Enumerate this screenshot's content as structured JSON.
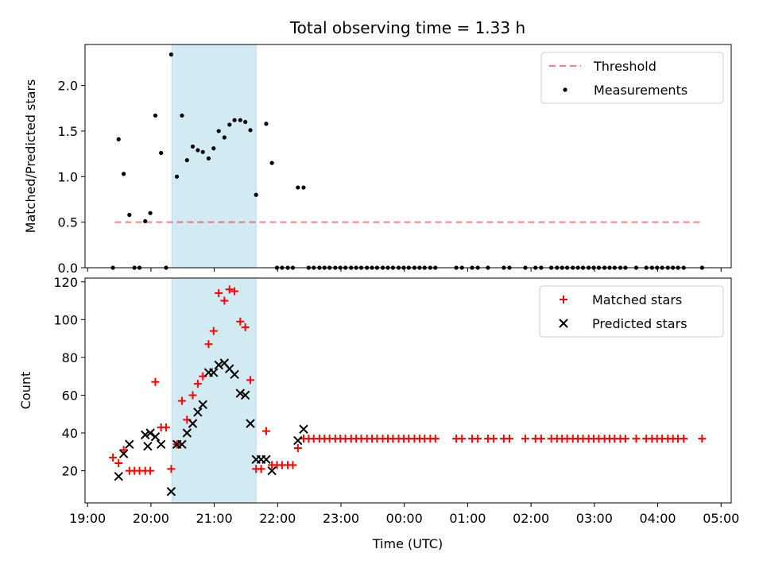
{
  "title": "Total observing time = 1.33 h",
  "xaxis": {
    "label": "Time (UTC)",
    "ticks": [
      {
        "t": 0,
        "label": "19:00"
      },
      {
        "t": 1,
        "label": "20:00"
      },
      {
        "t": 2,
        "label": "21:00"
      },
      {
        "t": 3,
        "label": "22:00"
      },
      {
        "t": 4,
        "label": "23:00"
      },
      {
        "t": 5,
        "label": "00:00"
      },
      {
        "t": 6,
        "label": "01:00"
      },
      {
        "t": 7,
        "label": "02:00"
      },
      {
        "t": 8,
        "label": "03:00"
      },
      {
        "t": 9,
        "label": "04:00"
      },
      {
        "t": 10,
        "label": "05:00"
      }
    ],
    "range": [
      -0.04,
      10.16
    ]
  },
  "shaded_span": {
    "start": 1.33,
    "end": 2.66,
    "color": "#add8e6"
  },
  "colors": {
    "threshold": "#ff0000",
    "measurements": "#000000",
    "matched": "#ff0000",
    "predicted": "#000000"
  },
  "chart_data": [
    {
      "type": "scatter",
      "ylabel": "Matched/Predicted stars",
      "ylim": [
        0,
        2.45
      ],
      "yticks": [
        0.0,
        0.5,
        1.0,
        1.5,
        2.0
      ],
      "ytick_labels": [
        "0.0",
        "0.5",
        "1.0",
        "1.5",
        "2.0"
      ],
      "legend": {
        "position": "top-right",
        "entries": [
          "Threshold",
          "Measurements"
        ]
      },
      "threshold": {
        "name": "Threshold",
        "value": 0.5,
        "x_range": [
          0.43,
          9.7
        ]
      },
      "series": [
        {
          "name": "Measurements",
          "points": [
            [
              0.4,
              0
            ],
            [
              0.49,
              1.41
            ],
            [
              0.57,
              1.03
            ],
            [
              0.66,
              0.58
            ],
            [
              0.74,
              0
            ],
            [
              0.82,
              0
            ],
            [
              0.91,
              0.51
            ],
            [
              0.99,
              0.6
            ],
            [
              1.07,
              1.67
            ],
            [
              1.16,
              1.26
            ],
            [
              1.24,
              0
            ],
            [
              1.32,
              2.34
            ],
            [
              1.41,
              1.0
            ],
            [
              1.49,
              1.67
            ],
            [
              1.57,
              1.18
            ],
            [
              1.66,
              1.33
            ],
            [
              1.74,
              1.29
            ],
            [
              1.82,
              1.27
            ],
            [
              1.91,
              1.2
            ],
            [
              1.99,
              1.31
            ],
            [
              2.07,
              1.5
            ],
            [
              2.16,
              1.43
            ],
            [
              2.24,
              1.57
            ],
            [
              2.32,
              1.62
            ],
            [
              2.41,
              1.62
            ],
            [
              2.49,
              1.6
            ],
            [
              2.57,
              1.51
            ],
            [
              2.66,
              0.8
            ],
            [
              2.82,
              1.58
            ],
            [
              2.91,
              1.15
            ],
            [
              2.99,
              0
            ],
            [
              3.07,
              0
            ],
            [
              3.16,
              0
            ],
            [
              3.24,
              0
            ],
            [
              3.32,
              0.88
            ],
            [
              3.41,
              0.88
            ],
            [
              3.49,
              0
            ],
            [
              3.57,
              0
            ],
            [
              3.66,
              0
            ],
            [
              3.74,
              0
            ],
            [
              3.82,
              0
            ],
            [
              3.91,
              0
            ],
            [
              3.99,
              0
            ],
            [
              4.07,
              0
            ],
            [
              4.16,
              0
            ],
            [
              4.24,
              0
            ],
            [
              4.32,
              0
            ],
            [
              4.41,
              0
            ],
            [
              4.49,
              0
            ],
            [
              4.57,
              0
            ],
            [
              4.66,
              0
            ],
            [
              4.74,
              0
            ],
            [
              4.82,
              0
            ],
            [
              4.91,
              0
            ],
            [
              4.99,
              0
            ],
            [
              5.07,
              0
            ],
            [
              5.16,
              0
            ],
            [
              5.24,
              0
            ],
            [
              5.32,
              0
            ],
            [
              5.41,
              0
            ],
            [
              5.49,
              0
            ],
            [
              5.82,
              0
            ],
            [
              5.91,
              0
            ],
            [
              6.07,
              0
            ],
            [
              6.16,
              0
            ],
            [
              6.32,
              0
            ],
            [
              6.57,
              0
            ],
            [
              6.66,
              0
            ],
            [
              6.91,
              0
            ],
            [
              7.07,
              0
            ],
            [
              7.16,
              0
            ],
            [
              7.32,
              0
            ],
            [
              7.41,
              0
            ],
            [
              7.49,
              0
            ],
            [
              7.57,
              0
            ],
            [
              7.66,
              0
            ],
            [
              7.74,
              0
            ],
            [
              7.82,
              0
            ],
            [
              7.91,
              0
            ],
            [
              7.99,
              0
            ],
            [
              8.07,
              0
            ],
            [
              8.16,
              0
            ],
            [
              8.24,
              0
            ],
            [
              8.32,
              0
            ],
            [
              8.41,
              0
            ],
            [
              8.49,
              0
            ],
            [
              8.66,
              0
            ],
            [
              8.82,
              0
            ],
            [
              8.91,
              0
            ],
            [
              8.99,
              0
            ],
            [
              9.07,
              0
            ],
            [
              9.16,
              0
            ],
            [
              9.24,
              0
            ],
            [
              9.32,
              0
            ],
            [
              9.41,
              0
            ],
            [
              9.7,
              0
            ]
          ]
        }
      ]
    },
    {
      "type": "scatter",
      "ylabel": "Count",
      "ylim": [
        3,
        122
      ],
      "yticks": [
        20,
        40,
        60,
        80,
        100,
        120
      ],
      "ytick_labels": [
        "20",
        "40",
        "60",
        "80",
        "100",
        "120"
      ],
      "legend": {
        "position": "top-right",
        "entries": [
          "Matched stars",
          "Predicted stars"
        ]
      },
      "series": [
        {
          "name": "Matched stars",
          "marker": "+",
          "points": [
            [
              0.4,
              27
            ],
            [
              0.49,
              24
            ],
            [
              0.57,
              31
            ],
            [
              0.66,
              20
            ],
            [
              0.74,
              20
            ],
            [
              0.82,
              20
            ],
            [
              0.91,
              20
            ],
            [
              0.99,
              20
            ],
            [
              1.07,
              67
            ],
            [
              1.16,
              43
            ],
            [
              1.24,
              43
            ],
            [
              1.32,
              21
            ],
            [
              1.41,
              34
            ],
            [
              1.49,
              57
            ],
            [
              1.57,
              47
            ],
            [
              1.66,
              60
            ],
            [
              1.74,
              66
            ],
            [
              1.82,
              70
            ],
            [
              1.91,
              87
            ],
            [
              1.99,
              94
            ],
            [
              2.07,
              114
            ],
            [
              2.16,
              110
            ],
            [
              2.24,
              116
            ],
            [
              2.32,
              115
            ],
            [
              2.41,
              99
            ],
            [
              2.49,
              96
            ],
            [
              2.57,
              68
            ],
            [
              2.66,
              21
            ],
            [
              2.74,
              21
            ],
            [
              2.82,
              41
            ],
            [
              2.91,
              23
            ],
            [
              2.99,
              23
            ],
            [
              3.07,
              23
            ],
            [
              3.16,
              23
            ],
            [
              3.24,
              23
            ],
            [
              3.32,
              32
            ],
            [
              3.41,
              37
            ],
            [
              3.49,
              37
            ],
            [
              3.57,
              37
            ],
            [
              3.66,
              37
            ],
            [
              3.74,
              37
            ],
            [
              3.82,
              37
            ],
            [
              3.91,
              37
            ],
            [
              3.99,
              37
            ],
            [
              4.07,
              37
            ],
            [
              4.16,
              37
            ],
            [
              4.24,
              37
            ],
            [
              4.32,
              37
            ],
            [
              4.41,
              37
            ],
            [
              4.49,
              37
            ],
            [
              4.57,
              37
            ],
            [
              4.66,
              37
            ],
            [
              4.74,
              37
            ],
            [
              4.82,
              37
            ],
            [
              4.91,
              37
            ],
            [
              4.99,
              37
            ],
            [
              5.07,
              37
            ],
            [
              5.16,
              37
            ],
            [
              5.24,
              37
            ],
            [
              5.32,
              37
            ],
            [
              5.41,
              37
            ],
            [
              5.49,
              37
            ],
            [
              5.82,
              37
            ],
            [
              5.91,
              37
            ],
            [
              6.07,
              37
            ],
            [
              6.16,
              37
            ],
            [
              6.32,
              37
            ],
            [
              6.41,
              37
            ],
            [
              6.57,
              37
            ],
            [
              6.66,
              37
            ],
            [
              6.91,
              37
            ],
            [
              7.07,
              37
            ],
            [
              7.16,
              37
            ],
            [
              7.32,
              37
            ],
            [
              7.41,
              37
            ],
            [
              7.49,
              37
            ],
            [
              7.57,
              37
            ],
            [
              7.66,
              37
            ],
            [
              7.74,
              37
            ],
            [
              7.82,
              37
            ],
            [
              7.91,
              37
            ],
            [
              7.99,
              37
            ],
            [
              8.07,
              37
            ],
            [
              8.16,
              37
            ],
            [
              8.24,
              37
            ],
            [
              8.32,
              37
            ],
            [
              8.41,
              37
            ],
            [
              8.49,
              37
            ],
            [
              8.66,
              37
            ],
            [
              8.82,
              37
            ],
            [
              8.91,
              37
            ],
            [
              8.99,
              37
            ],
            [
              9.07,
              37
            ],
            [
              9.16,
              37
            ],
            [
              9.24,
              37
            ],
            [
              9.32,
              37
            ],
            [
              9.41,
              37
            ],
            [
              9.7,
              37
            ]
          ]
        },
        {
          "name": "Predicted stars",
          "marker": "x",
          "points": [
            [
              0.49,
              17
            ],
            [
              0.57,
              29
            ],
            [
              0.66,
              34
            ],
            [
              0.91,
              39
            ],
            [
              0.95,
              33
            ],
            [
              0.99,
              40
            ],
            [
              1.07,
              38
            ],
            [
              1.16,
              34
            ],
            [
              1.32,
              9
            ],
            [
              1.41,
              34
            ],
            [
              1.49,
              34
            ],
            [
              1.57,
              40
            ],
            [
              1.66,
              45
            ],
            [
              1.74,
              51
            ],
            [
              1.82,
              55
            ],
            [
              1.91,
              72
            ],
            [
              1.99,
              72
            ],
            [
              2.07,
              76
            ],
            [
              2.16,
              77
            ],
            [
              2.24,
              74
            ],
            [
              2.32,
              71
            ],
            [
              2.41,
              61
            ],
            [
              2.49,
              60
            ],
            [
              2.57,
              45
            ],
            [
              2.66,
              26
            ],
            [
              2.74,
              26
            ],
            [
              2.82,
              26
            ],
            [
              2.91,
              20
            ],
            [
              3.32,
              36
            ],
            [
              3.41,
              42
            ]
          ]
        }
      ]
    }
  ]
}
